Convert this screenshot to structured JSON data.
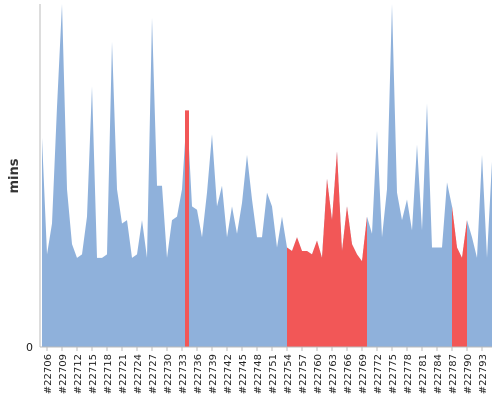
{
  "chart_data": {
    "type": "area",
    "title": "",
    "xlabel": "",
    "ylabel": "mins",
    "ylim": [
      0,
      1
    ],
    "y_ticks": [
      0
    ],
    "grid": false,
    "colors": {
      "normal": "#8fb1db",
      "highlight": "#f25757"
    },
    "x_tick_labels": [
      "#22706",
      "#22709",
      "#22712",
      "#22715",
      "#22718",
      "#22721",
      "#22724",
      "#22727",
      "#22730",
      "#22733",
      "#22736",
      "#22739",
      "#22742",
      "#22745",
      "#22748",
      "#22751",
      "#22754",
      "#22757",
      "#22760",
      "#22763",
      "#22766",
      "#22769",
      "#22772",
      "#22775",
      "#22778",
      "#22781",
      "#22784",
      "#22787",
      "#22790",
      "#22793"
    ],
    "x": [
      22705,
      22706,
      22707,
      22708,
      22709,
      22710,
      22711,
      22712,
      22713,
      22714,
      22715,
      22716,
      22717,
      22718,
      22719,
      22720,
      22721,
      22722,
      22723,
      22724,
      22725,
      22726,
      22727,
      22728,
      22729,
      22730,
      22731,
      22732,
      22733,
      22734,
      22735,
      22736,
      22737,
      22738,
      22739,
      22740,
      22741,
      22742,
      22743,
      22744,
      22745,
      22746,
      22747,
      22748,
      22749,
      22750,
      22751,
      22752,
      22753,
      22754,
      22755,
      22756,
      22757,
      22758,
      22759,
      22760,
      22761,
      22762,
      22763,
      22764,
      22765,
      22766,
      22767,
      22768,
      22769,
      22770,
      22771,
      22772,
      22773,
      22774,
      22775,
      22776,
      22777,
      22778,
      22779,
      22780,
      22781,
      22782,
      22783,
      22784,
      22785,
      22786,
      22787,
      22788,
      22789,
      22790,
      22791,
      22792,
      22793,
      22794,
      22795
    ],
    "values": [
      0.61,
      0.27,
      0.36,
      0.7,
      1.0,
      0.46,
      0.3,
      0.26,
      0.27,
      0.38,
      0.76,
      0.26,
      0.26,
      0.27,
      0.89,
      0.46,
      0.36,
      0.37,
      0.26,
      0.27,
      0.37,
      0.26,
      0.96,
      0.47,
      0.47,
      0.26,
      0.37,
      0.38,
      0.46,
      0.69,
      0.41,
      0.4,
      0.32,
      0.45,
      0.62,
      0.41,
      0.47,
      0.32,
      0.41,
      0.33,
      0.42,
      0.56,
      0.43,
      0.32,
      0.32,
      0.45,
      0.41,
      0.29,
      0.38,
      0.29,
      0.28,
      0.32,
      0.28,
      0.28,
      0.27,
      0.31,
      0.26,
      0.49,
      0.37,
      0.57,
      0.28,
      0.41,
      0.3,
      0.27,
      0.25,
      0.38,
      0.33,
      0.63,
      0.32,
      0.46,
      1.0,
      0.45,
      0.37,
      0.43,
      0.34,
      0.59,
      0.34,
      0.71,
      0.29,
      0.29,
      0.29,
      0.48,
      0.41,
      0.29,
      0.26,
      0.37,
      0.32,
      0.26,
      0.56,
      0.26,
      0.54
    ],
    "highlight_x": [
      22734,
      22754,
      22755,
      22756,
      22757,
      22758,
      22759,
      22760,
      22761,
      22762,
      22763,
      22764,
      22765,
      22766,
      22767,
      22768,
      22769,
      22770,
      22787,
      22788,
      22789,
      22790
    ]
  }
}
